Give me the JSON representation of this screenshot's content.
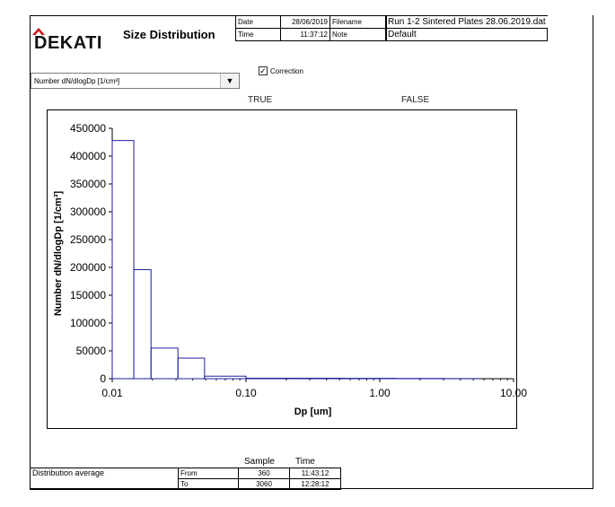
{
  "header": {
    "logo_text": "DEKATI",
    "title": "Size Distribution",
    "date_label": "Date",
    "date_value": "28/06/2019",
    "time_label": "Time",
    "time_value": "11:37:12",
    "filename_label": "Filename",
    "filename_value": "Run 1-2 Sintered Plates 28.06.2019.dat",
    "note_label": "Note",
    "note_value": "Default"
  },
  "controls": {
    "dropdown_value": "Number dN/dlogDp [1/cm³]",
    "correction_label": "Correction",
    "correction_checked": true,
    "flag_true": "TRUE",
    "flag_false": "FALSE"
  },
  "chart_data": {
    "type": "bar",
    "xlabel": "Dp [um]",
    "ylabel": "Number dN/dlogDp [1/cm³]",
    "x_scale": "log",
    "xlim": [
      0.01,
      10
    ],
    "ylim": [
      0,
      450000
    ],
    "xticks": [
      0.01,
      0.1,
      1,
      10
    ],
    "xtick_labels": [
      "0.01",
      "0.10",
      "1.00",
      "10.00"
    ],
    "yticks": [
      0,
      50000,
      100000,
      150000,
      200000,
      250000,
      300000,
      350000,
      400000,
      450000
    ],
    "ytick_labels": [
      "0",
      "50000",
      "100000",
      "150000",
      "200000",
      "250000",
      "300000",
      "350000",
      "400000",
      "450000"
    ],
    "bins": [
      {
        "lo": 0.01,
        "hi": 0.0145,
        "value": 428000
      },
      {
        "lo": 0.0145,
        "hi": 0.0195,
        "value": 196000
      },
      {
        "lo": 0.0195,
        "hi": 0.031,
        "value": 55000
      },
      {
        "lo": 0.031,
        "hi": 0.049,
        "value": 37000
      },
      {
        "lo": 0.049,
        "hi": 0.1,
        "value": 4500
      },
      {
        "lo": 0.1,
        "hi": 0.55,
        "value": 800
      },
      {
        "lo": 0.55,
        "hi": 1.3,
        "value": 600
      },
      {
        "lo": 1.3,
        "hi": 3.0,
        "value": 400
      },
      {
        "lo": 3.0,
        "hi": 5.5,
        "value": 200
      }
    ],
    "grid": false,
    "legend": "none",
    "line_color": "#1f1f9e"
  },
  "stats": {
    "sample_header": "Sample",
    "time_header": "Time",
    "row_label": "Distribution average",
    "from_label": "From",
    "from_sample": "360",
    "from_time": "11:43:12",
    "to_label": "To",
    "to_sample": "3060",
    "to_time": "12:28:12"
  }
}
